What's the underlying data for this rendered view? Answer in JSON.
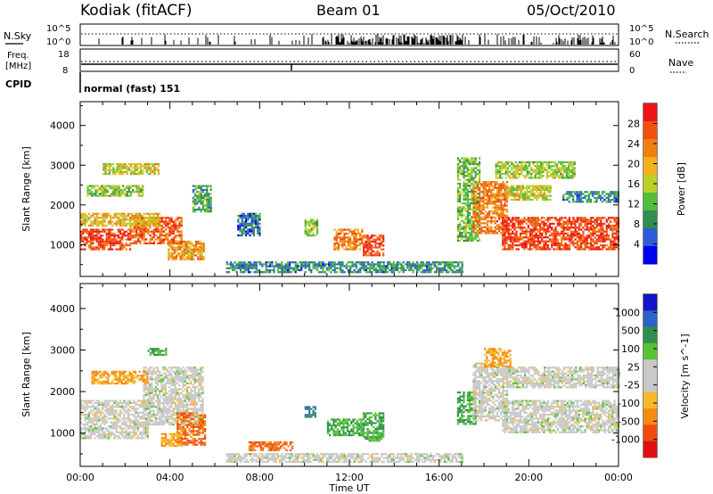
{
  "header": {
    "site": "Kodiak (fitACF)",
    "beam": "Beam 01",
    "date": "05/Oct/2010"
  },
  "nsky_panel": {
    "left_label": "N.Sky",
    "right_label": "N.Search",
    "left_ticks": [
      "10^5",
      "10^0"
    ],
    "right_ticks": [
      "10^5",
      "10^0"
    ]
  },
  "freq_panel": {
    "left_label_line1": "Freq.",
    "left_label_line2": "[MHz]",
    "right_label": "Nave",
    "left_ticks": [
      "18",
      "8"
    ],
    "right_ticks": [
      "60",
      "0"
    ]
  },
  "cpid_panel": {
    "label": "CPID",
    "mode_text": "normal (fast) 151"
  },
  "colors": {
    "power_scale": [
      "#0000f0",
      "#2e5bd6",
      "#2f8f4e",
      "#4fbf3a",
      "#b8d22a",
      "#f4b01b",
      "#f07e10",
      "#f25010",
      "#f01414"
    ],
    "velocity_scale": [
      "#e01010",
      "#f04a10",
      "#f58a12",
      "#f9b82a",
      "#c8c8c8",
      "#c8c8c8",
      "#55c335",
      "#2f8f4e",
      "#2d63c8",
      "#1414c8"
    ],
    "ground_scatter": "#c8c8c8"
  },
  "chart_data": [
    {
      "type": "heatmap",
      "name": "power",
      "ylabel": "Slant Range [km]",
      "colorbar_label": "Power [dB]",
      "colorbar_ticks": [
        "28",
        "24",
        "20",
        "16",
        "12",
        "8",
        "4"
      ],
      "yticks": [
        "4000",
        "3000",
        "2000",
        "1000"
      ],
      "ylim": [
        200,
        4600
      ],
      "xlim": [
        0,
        24
      ],
      "grid": false,
      "regions": [
        {
          "t0": 0.0,
          "t1": 2.2,
          "r0": 900,
          "r1": 1400,
          "level": 26
        },
        {
          "t0": 2.2,
          "t1": 4.5,
          "r0": 1050,
          "r1": 1700,
          "level": 24
        },
        {
          "t0": 0.0,
          "t1": 3.5,
          "r0": 1500,
          "r1": 1800,
          "level": 18
        },
        {
          "t0": 3.9,
          "t1": 5.5,
          "r0": 650,
          "r1": 1100,
          "level": 20
        },
        {
          "t0": 0.3,
          "t1": 2.8,
          "r0": 2250,
          "r1": 2500,
          "level": 14
        },
        {
          "t0": 1.0,
          "t1": 3.5,
          "r0": 2800,
          "r1": 3050,
          "level": 16
        },
        {
          "t0": 5.0,
          "t1": 5.8,
          "r0": 1850,
          "r1": 2500,
          "level": 10
        },
        {
          "t0": 6.5,
          "t1": 17.0,
          "r0": 320,
          "r1": 580,
          "level": 8
        },
        {
          "t0": 10.0,
          "t1": 10.6,
          "r0": 1250,
          "r1": 1650,
          "level": 14
        },
        {
          "t0": 11.3,
          "t1": 12.6,
          "r0": 900,
          "r1": 1400,
          "level": 22
        },
        {
          "t0": 12.6,
          "t1": 13.5,
          "r0": 750,
          "r1": 1250,
          "level": 26
        },
        {
          "t0": 7.0,
          "t1": 8.0,
          "r0": 1250,
          "r1": 1800,
          "level": 6
        },
        {
          "t0": 16.8,
          "t1": 17.8,
          "r0": 1100,
          "r1": 3200,
          "level": 12
        },
        {
          "t0": 17.5,
          "t1": 19.0,
          "r0": 1300,
          "r1": 2600,
          "level": 22
        },
        {
          "t0": 18.8,
          "t1": 24.0,
          "r0": 900,
          "r1": 1700,
          "level": 26
        },
        {
          "t0": 18.5,
          "t1": 22.0,
          "r0": 2700,
          "r1": 3100,
          "level": 14
        },
        {
          "t0": 21.5,
          "t1": 24.0,
          "r0": 2100,
          "r1": 2350,
          "level": 8
        },
        {
          "t0": 19.0,
          "t1": 21.0,
          "r0": 2150,
          "r1": 2500,
          "level": 16
        }
      ]
    },
    {
      "type": "heatmap",
      "name": "velocity",
      "ylabel": "Slant Range [km]",
      "xlabel": "Time UT",
      "colorbar_label": "Velocity [m s^-1]",
      "colorbar_ticks": [
        "1000",
        "500",
        "100",
        "25",
        "-25",
        "-100",
        "-500",
        "-1000"
      ],
      "yticks": [
        "4000",
        "3000",
        "2000",
        "1000"
      ],
      "xticks": [
        "00:00",
        "04:00",
        "08:00",
        "12:00",
        "16:00",
        "20:00",
        "00:00"
      ],
      "ylim": [
        200,
        4600
      ],
      "xlim": [
        0,
        24
      ],
      "grid": false,
      "regions": [
        {
          "t0": 0.0,
          "t1": 3.0,
          "r0": 900,
          "r1": 1800,
          "level": 0
        },
        {
          "t0": 2.8,
          "t1": 5.5,
          "r0": 1200,
          "r1": 2600,
          "level": 0
        },
        {
          "t0": 4.3,
          "t1": 5.6,
          "r0": 700,
          "r1": 1500,
          "level": -500
        },
        {
          "t0": 3.6,
          "t1": 4.5,
          "r0": 700,
          "r1": 1000,
          "level": -100
        },
        {
          "t0": 0.5,
          "t1": 3.0,
          "r0": 2200,
          "r1": 2500,
          "level": -100
        },
        {
          "t0": 3.0,
          "t1": 3.8,
          "r0": 2900,
          "r1": 3050,
          "level": 100
        },
        {
          "t0": 6.5,
          "t1": 17.0,
          "r0": 320,
          "r1": 520,
          "level": 0
        },
        {
          "t0": 7.5,
          "t1": 9.5,
          "r0": 600,
          "r1": 800,
          "level": -500
        },
        {
          "t0": 11.0,
          "t1": 12.6,
          "r0": 950,
          "r1": 1350,
          "level": 100
        },
        {
          "t0": 12.6,
          "t1": 13.5,
          "r0": 800,
          "r1": 1500,
          "level": 100
        },
        {
          "t0": 10.0,
          "t1": 10.5,
          "r0": 1400,
          "r1": 1650,
          "level": 500
        },
        {
          "t0": 16.8,
          "t1": 17.6,
          "r0": 1200,
          "r1": 2000,
          "level": 100
        },
        {
          "t0": 17.5,
          "t1": 19.0,
          "r0": 1300,
          "r1": 2700,
          "level": 0
        },
        {
          "t0": 18.8,
          "t1": 24.0,
          "r0": 1000,
          "r1": 1800,
          "level": 0
        },
        {
          "t0": 19.0,
          "t1": 24.0,
          "r0": 2100,
          "r1": 2600,
          "level": 0
        },
        {
          "t0": 18.0,
          "t1": 19.2,
          "r0": 2600,
          "r1": 3050,
          "level": -100
        }
      ]
    }
  ]
}
